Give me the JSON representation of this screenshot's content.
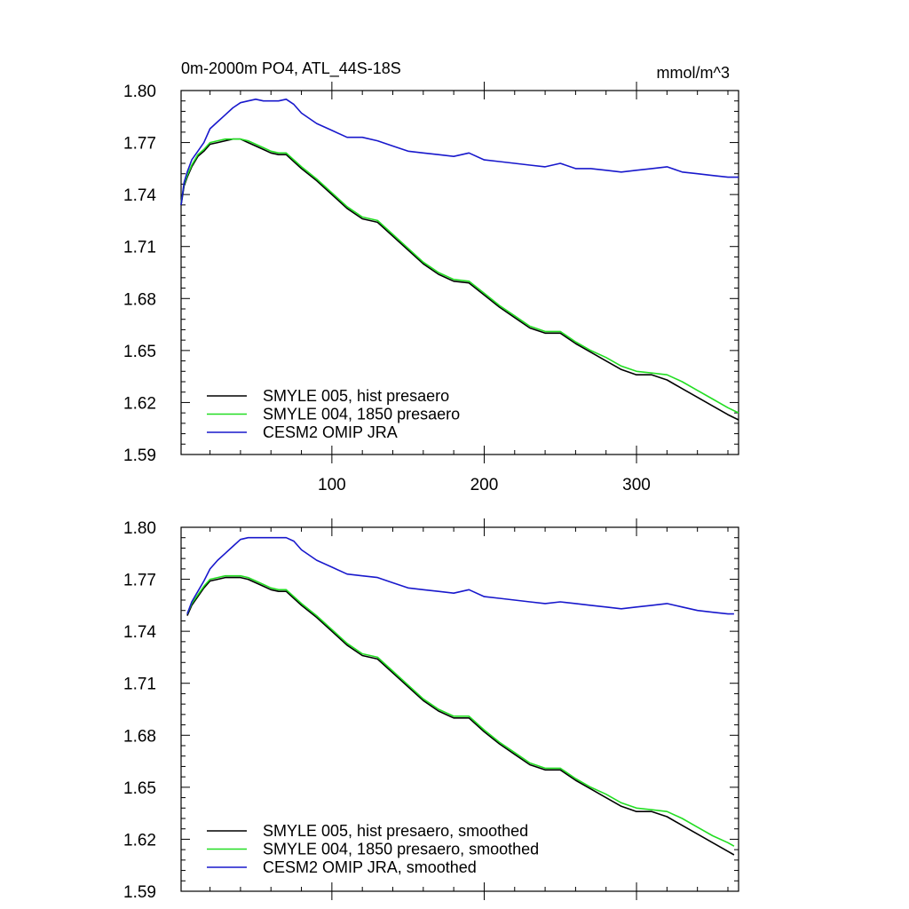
{
  "chart_data": [
    {
      "type": "line",
      "title": "0m-2000m PO4, ATL_44S-18S",
      "units": "mmol/m^3",
      "xlim": [
        1,
        367
      ],
      "ylim": [
        1.59,
        1.8
      ],
      "xticks": [
        100,
        200,
        300
      ],
      "xtick_labels": [
        "100",
        "200",
        "300"
      ],
      "yticks": [
        1.59,
        1.62,
        1.65,
        1.68,
        1.71,
        1.74,
        1.77,
        1.8
      ],
      "ytick_labels": [
        "1.59",
        "1.62",
        "1.65",
        "1.68",
        "1.71",
        "1.74",
        "1.77",
        "1.80"
      ],
      "legend": "bottom-left",
      "series": [
        {
          "name": "SMYLE 005, hist presaero",
          "color": "#000000",
          "x": [
            1,
            3,
            5,
            8,
            12,
            16,
            20,
            25,
            30,
            35,
            40,
            45,
            50,
            55,
            60,
            65,
            70,
            75,
            80,
            90,
            100,
            110,
            120,
            130,
            140,
            150,
            160,
            170,
            180,
            190,
            200,
            210,
            220,
            230,
            240,
            250,
            260,
            270,
            280,
            290,
            300,
            310,
            320,
            330,
            340,
            350,
            360,
            367
          ],
          "y": [
            1.734,
            1.745,
            1.75,
            1.756,
            1.762,
            1.765,
            1.769,
            1.77,
            1.771,
            1.772,
            1.772,
            1.77,
            1.768,
            1.766,
            1.764,
            1.763,
            1.763,
            1.759,
            1.755,
            1.748,
            1.74,
            1.732,
            1.726,
            1.724,
            1.716,
            1.708,
            1.7,
            1.694,
            1.69,
            1.689,
            1.682,
            1.675,
            1.669,
            1.663,
            1.66,
            1.66,
            1.654,
            1.649,
            1.644,
            1.639,
            1.636,
            1.636,
            1.633,
            1.628,
            1.623,
            1.618,
            1.613,
            1.61
          ]
        },
        {
          "name": "SMYLE 004, 1850 presaero",
          "color": "#22dd22",
          "x": [
            1,
            3,
            5,
            8,
            12,
            16,
            20,
            25,
            30,
            35,
            40,
            45,
            50,
            55,
            60,
            65,
            70,
            75,
            80,
            90,
            100,
            110,
            120,
            130,
            140,
            150,
            160,
            170,
            180,
            190,
            200,
            210,
            220,
            230,
            240,
            250,
            260,
            270,
            280,
            290,
            300,
            310,
            320,
            330,
            340,
            350,
            360,
            367
          ],
          "y": [
            1.735,
            1.746,
            1.751,
            1.757,
            1.763,
            1.766,
            1.77,
            1.771,
            1.772,
            1.772,
            1.772,
            1.771,
            1.769,
            1.767,
            1.765,
            1.764,
            1.764,
            1.76,
            1.756,
            1.749,
            1.741,
            1.733,
            1.727,
            1.725,
            1.717,
            1.709,
            1.701,
            1.695,
            1.691,
            1.69,
            1.683,
            1.676,
            1.67,
            1.664,
            1.661,
            1.661,
            1.655,
            1.65,
            1.646,
            1.641,
            1.638,
            1.637,
            1.636,
            1.632,
            1.627,
            1.622,
            1.617,
            1.614
          ]
        },
        {
          "name": "CESM2 OMIP JRA",
          "color": "#1818cc",
          "x": [
            1,
            3,
            5,
            8,
            12,
            16,
            20,
            25,
            30,
            35,
            40,
            45,
            50,
            55,
            60,
            65,
            70,
            75,
            80,
            90,
            100,
            110,
            120,
            130,
            140,
            150,
            160,
            170,
            180,
            190,
            200,
            210,
            220,
            230,
            240,
            250,
            260,
            270,
            280,
            290,
            300,
            310,
            320,
            330,
            340,
            350,
            360,
            367
          ],
          "y": [
            1.734,
            1.747,
            1.753,
            1.76,
            1.765,
            1.77,
            1.778,
            1.782,
            1.786,
            1.79,
            1.793,
            1.794,
            1.795,
            1.794,
            1.794,
            1.794,
            1.795,
            1.792,
            1.787,
            1.781,
            1.777,
            1.773,
            1.773,
            1.771,
            1.768,
            1.765,
            1.764,
            1.763,
            1.762,
            1.764,
            1.76,
            1.759,
            1.758,
            1.757,
            1.756,
            1.758,
            1.755,
            1.755,
            1.754,
            1.753,
            1.754,
            1.755,
            1.756,
            1.753,
            1.752,
            1.751,
            1.75,
            1.75
          ]
        }
      ]
    },
    {
      "type": "line",
      "title": "",
      "xlim": [
        1,
        367
      ],
      "ylim": [
        1.59,
        1.8
      ],
      "xticks": [
        100,
        200,
        300
      ],
      "xtick_labels": [],
      "yticks": [
        1.59,
        1.62,
        1.65,
        1.68,
        1.71,
        1.74,
        1.77,
        1.8
      ],
      "ytick_labels": [
        "1.59",
        "1.62",
        "1.65",
        "1.68",
        "1.71",
        "1.74",
        "1.77",
        "1.80"
      ],
      "legend": "bottom-left",
      "series": [
        {
          "name": "SMYLE 005, hist presaero, smoothed",
          "color": "#000000",
          "x": [
            5,
            8,
            12,
            16,
            20,
            25,
            30,
            35,
            40,
            45,
            50,
            55,
            60,
            65,
            70,
            75,
            80,
            90,
            100,
            110,
            120,
            130,
            140,
            150,
            160,
            170,
            180,
            190,
            200,
            210,
            220,
            230,
            240,
            250,
            260,
            270,
            280,
            290,
            300,
            310,
            320,
            330,
            340,
            350,
            360,
            364
          ],
          "y": [
            1.749,
            1.755,
            1.76,
            1.765,
            1.769,
            1.77,
            1.771,
            1.771,
            1.771,
            1.77,
            1.768,
            1.766,
            1.764,
            1.763,
            1.763,
            1.759,
            1.755,
            1.748,
            1.74,
            1.732,
            1.726,
            1.724,
            1.716,
            1.708,
            1.7,
            1.694,
            1.69,
            1.69,
            1.682,
            1.675,
            1.669,
            1.663,
            1.66,
            1.66,
            1.654,
            1.649,
            1.644,
            1.639,
            1.636,
            1.636,
            1.633,
            1.628,
            1.623,
            1.618,
            1.613,
            1.611
          ]
        },
        {
          "name": "SMYLE 004, 1850 presaero, smoothed",
          "color": "#22dd22",
          "x": [
            5,
            8,
            12,
            16,
            20,
            25,
            30,
            35,
            40,
            45,
            50,
            55,
            60,
            65,
            70,
            75,
            80,
            90,
            100,
            110,
            120,
            130,
            140,
            150,
            160,
            170,
            180,
            190,
            200,
            210,
            220,
            230,
            240,
            250,
            260,
            270,
            280,
            290,
            300,
            310,
            320,
            330,
            340,
            350,
            360,
            364
          ],
          "y": [
            1.75,
            1.756,
            1.761,
            1.766,
            1.77,
            1.771,
            1.772,
            1.772,
            1.772,
            1.771,
            1.769,
            1.767,
            1.765,
            1.764,
            1.764,
            1.76,
            1.756,
            1.749,
            1.741,
            1.733,
            1.727,
            1.725,
            1.717,
            1.709,
            1.701,
            1.695,
            1.691,
            1.691,
            1.683,
            1.676,
            1.67,
            1.664,
            1.661,
            1.661,
            1.655,
            1.65,
            1.646,
            1.641,
            1.638,
            1.637,
            1.636,
            1.632,
            1.627,
            1.622,
            1.618,
            1.616
          ]
        },
        {
          "name": "CESM2 OMIP JRA, smoothed",
          "color": "#1818cc",
          "x": [
            5,
            8,
            12,
            16,
            20,
            25,
            30,
            35,
            40,
            45,
            50,
            55,
            60,
            65,
            70,
            75,
            80,
            90,
            100,
            110,
            120,
            130,
            140,
            150,
            160,
            170,
            180,
            190,
            200,
            210,
            220,
            230,
            240,
            250,
            260,
            270,
            280,
            290,
            300,
            310,
            320,
            330,
            340,
            350,
            360,
            364
          ],
          "y": [
            1.75,
            1.757,
            1.763,
            1.769,
            1.776,
            1.781,
            1.785,
            1.789,
            1.793,
            1.794,
            1.794,
            1.794,
            1.794,
            1.794,
            1.794,
            1.792,
            1.787,
            1.781,
            1.777,
            1.773,
            1.772,
            1.771,
            1.768,
            1.765,
            1.764,
            1.763,
            1.762,
            1.764,
            1.76,
            1.759,
            1.758,
            1.757,
            1.756,
            1.757,
            1.756,
            1.755,
            1.754,
            1.753,
            1.754,
            1.755,
            1.756,
            1.754,
            1.752,
            1.751,
            1.75,
            1.75
          ]
        }
      ]
    }
  ]
}
